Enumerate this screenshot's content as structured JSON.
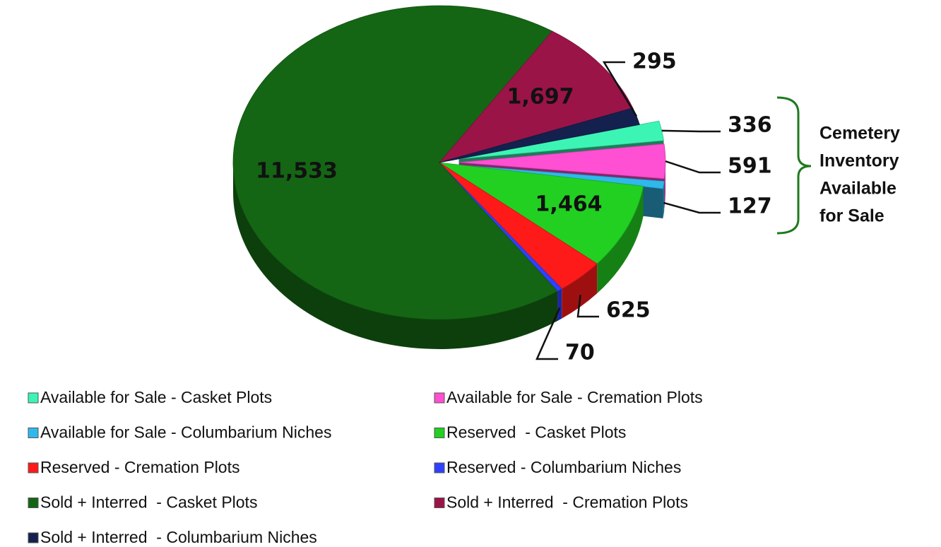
{
  "chart_data": {
    "type": "pie",
    "categories": [
      "Available for Sale - Casket Plots",
      "Available for Sale - Cremation Plots",
      "Available for Sale - Columbarium Niches",
      "Reserved  - Casket Plots",
      "Reserved - Cremation Plots",
      "Reserved - Columbarium Niches",
      "Sold + Interred  - Casket Plots",
      "Sold + Interred  - Cremation Plots",
      "Sold + Interred  - Columbarium Niches"
    ],
    "values": [
      336,
      591,
      127,
      1464,
      625,
      70,
      11533,
      1697,
      295
    ],
    "value_labels": [
      "336",
      "591",
      "127",
      "1,464",
      "625",
      "70",
      "11,533",
      "1,697",
      "295"
    ],
    "colors": [
      "#3cf5b4",
      "#ff4fd2",
      "#2fb8ec",
      "#22d022",
      "#ff1a1a",
      "#3040ff",
      "#146614",
      "#9a1448",
      "#14204e"
    ],
    "annotation": [
      "Cemetery",
      "Inventory",
      "Available",
      "for Sale"
    ],
    "legend": "bottom"
  }
}
